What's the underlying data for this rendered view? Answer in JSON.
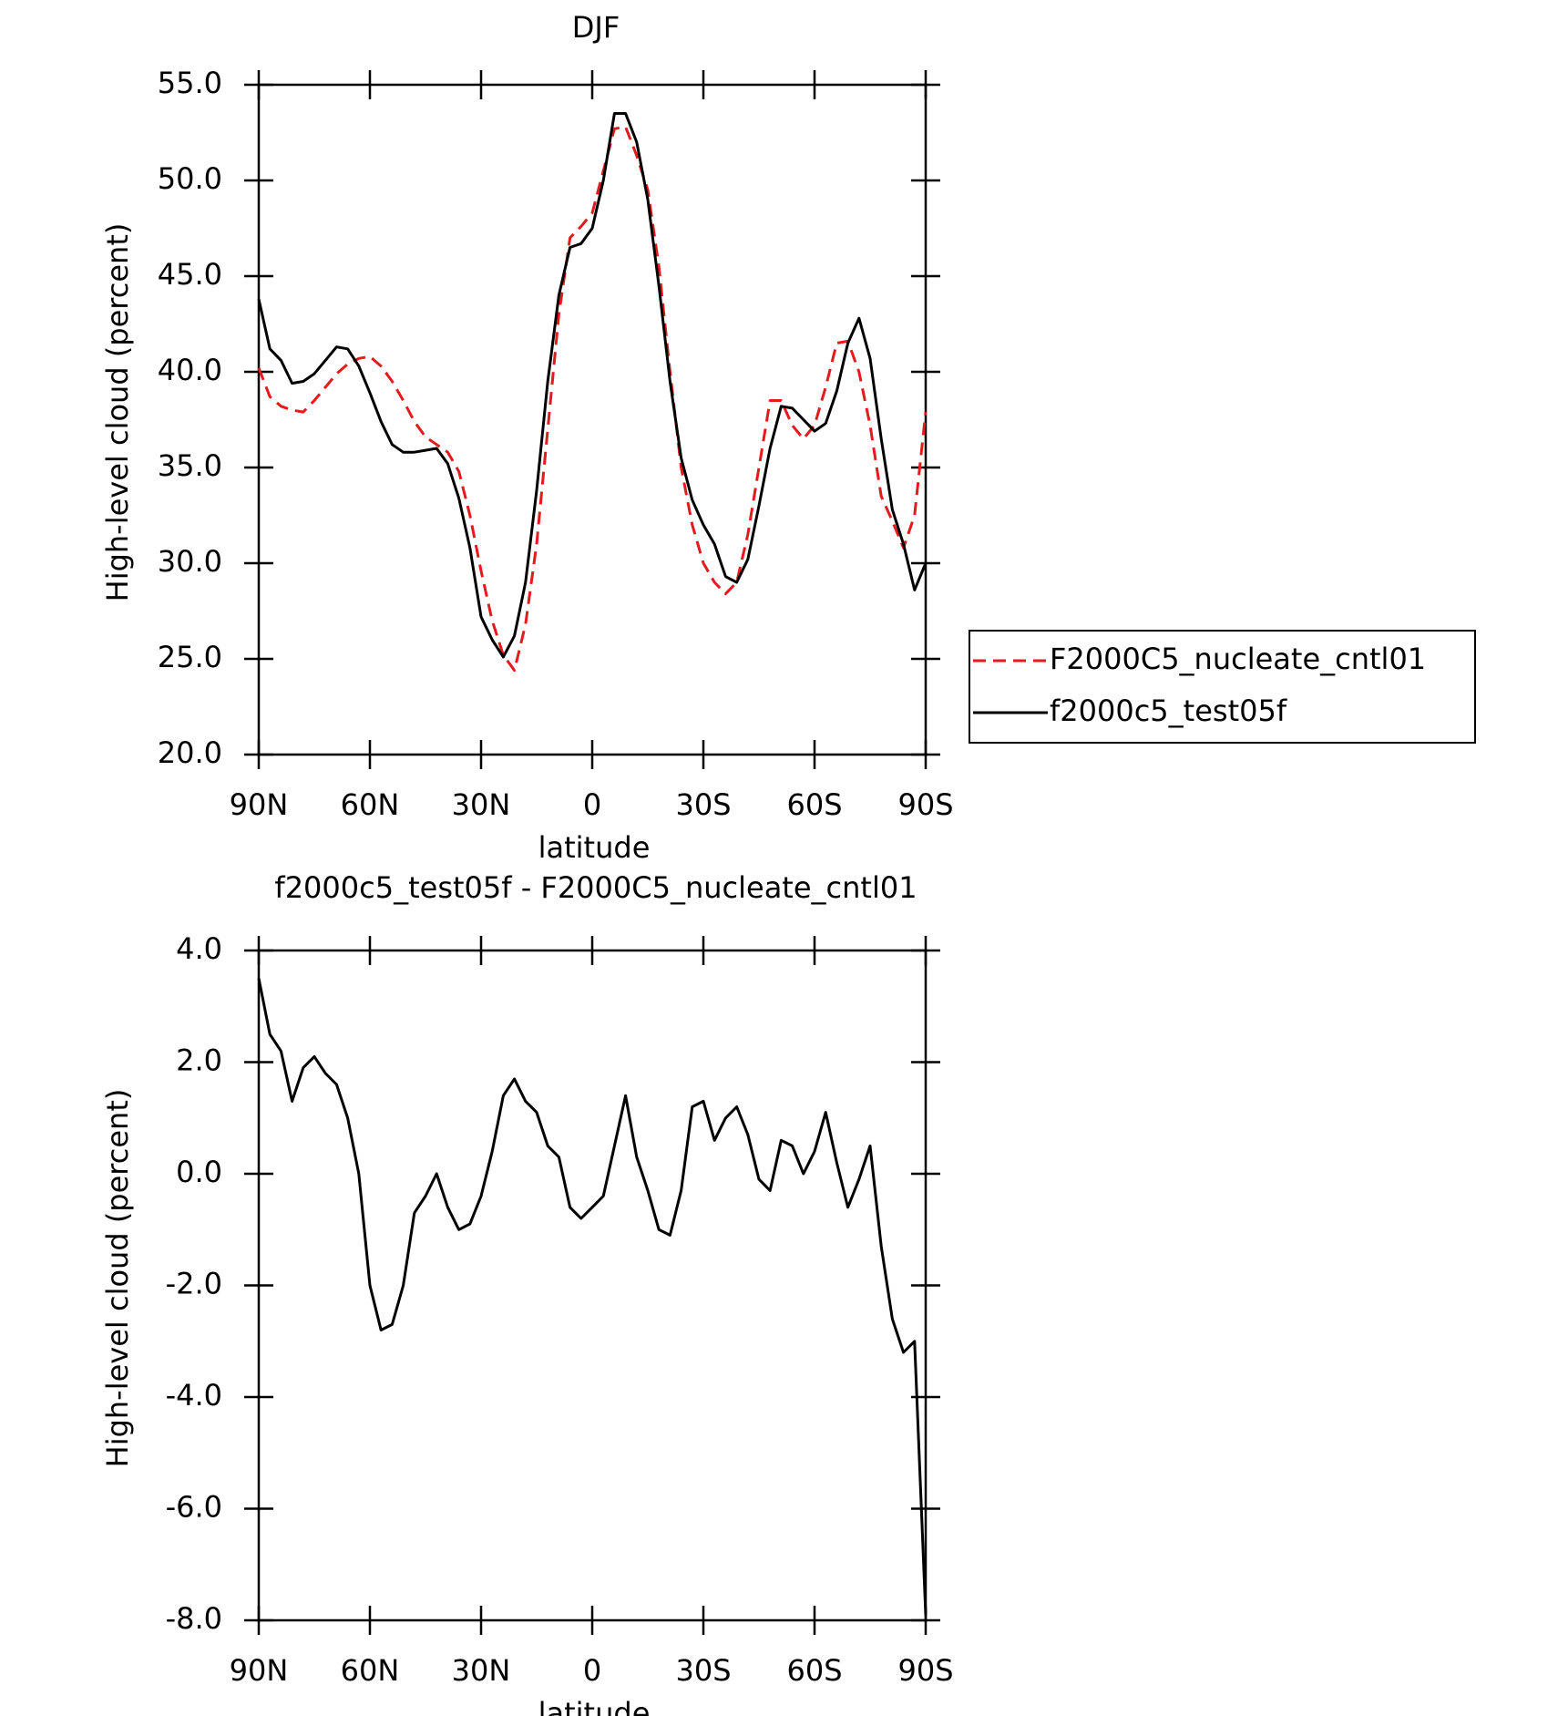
{
  "chart_data": [
    {
      "type": "line",
      "title": "DJF",
      "xlabel": "latitude",
      "ylabel": "High-level cloud (percent)",
      "x": [
        90,
        87,
        84,
        81,
        78,
        75,
        72,
        69,
        66,
        63,
        60,
        57,
        54,
        51,
        48,
        45,
        42,
        39,
        36,
        33,
        30,
        27,
        24,
        21,
        18,
        15,
        12,
        9,
        6,
        3,
        0,
        -3,
        -6,
        -9,
        -12,
        -15,
        -18,
        -21,
        -24,
        -27,
        -30,
        -33,
        -36,
        -39,
        -42,
        -45,
        -48,
        -51,
        -54,
        -57,
        -60,
        -63,
        -66,
        -69,
        -72,
        -75,
        -78,
        -81,
        -84,
        -87,
        -90
      ],
      "xlim": [
        90,
        -90
      ],
      "xticks": [
        {
          "value": 90,
          "label": "90N"
        },
        {
          "value": 60,
          "label": "60N"
        },
        {
          "value": 30,
          "label": "30N"
        },
        0,
        {
          "value": -30,
          "label": "30S"
        },
        {
          "value": -60,
          "label": "60S"
        },
        {
          "value": -90,
          "label": "90S"
        }
      ],
      "ylim": [
        20,
        55
      ],
      "yticks": [
        {
          "value": 20,
          "label": "20.0"
        },
        {
          "value": 25,
          "label": "25.0"
        },
        {
          "value": 30,
          "label": "30.0"
        },
        {
          "value": 35,
          "label": "35.0"
        },
        {
          "value": 40,
          "label": "40.0"
        },
        {
          "value": 45,
          "label": "45.0"
        },
        {
          "value": 50,
          "label": "50.0"
        },
        {
          "value": 55,
          "label": "55.0"
        }
      ],
      "legend": "right",
      "series": [
        {
          "name": "F2000C5_nucleate_cntl01",
          "color": "#e41a1c",
          "linestyle": "dashed",
          "values": [
            40.2,
            38.7,
            38.2,
            38.0,
            37.9,
            38.5,
            39.2,
            39.9,
            40.4,
            40.7,
            40.8,
            40.3,
            39.5,
            38.5,
            37.4,
            36.6,
            36.2,
            35.8,
            34.8,
            32.5,
            29.6,
            27.0,
            25.2,
            24.4,
            26.8,
            31.0,
            37.0,
            43.0,
            47.0,
            47.6,
            48.3,
            50.5,
            52.7,
            52.8,
            51.3,
            49.5,
            45.5,
            40.0,
            35.0,
            32.0,
            30.0,
            29.0,
            28.4,
            29.0,
            31.5,
            35.0,
            38.5,
            38.5,
            37.2,
            36.5,
            37.2,
            39.2,
            41.5,
            41.6,
            40.0,
            37.2,
            33.5,
            32.2,
            30.8,
            32.5,
            37.9
          ]
        },
        {
          "name": "f2000c5_test05f",
          "color": "#000000",
          "linestyle": "solid",
          "values": [
            43.8,
            41.2,
            40.6,
            39.4,
            39.5,
            39.9,
            40.6,
            41.3,
            41.2,
            40.3,
            38.9,
            37.4,
            36.2,
            35.8,
            35.8,
            35.9,
            36.0,
            35.2,
            33.4,
            30.8,
            27.2,
            26.0,
            25.1,
            26.2,
            29.0,
            33.8,
            39.5,
            44.0,
            46.5,
            46.7,
            47.5,
            50.0,
            53.5,
            53.5,
            52.0,
            49.0,
            44.5,
            39.5,
            35.5,
            33.3,
            32.0,
            31.0,
            29.3,
            29.0,
            30.2,
            33.0,
            36.0,
            38.2,
            38.1,
            37.5,
            36.9,
            37.3,
            39.0,
            41.5,
            42.8,
            40.7,
            36.5,
            32.8,
            31.0,
            28.6,
            30.0
          ]
        }
      ]
    },
    {
      "type": "line",
      "title": "f2000c5_test05f - F2000C5_nucleate_cntl01",
      "xlabel": "latitude",
      "ylabel": "High-level cloud (percent)",
      "x": [
        90,
        87,
        84,
        81,
        78,
        75,
        72,
        69,
        66,
        63,
        60,
        57,
        54,
        51,
        48,
        45,
        42,
        39,
        36,
        33,
        30,
        27,
        24,
        21,
        18,
        15,
        12,
        9,
        6,
        3,
        0,
        -3,
        -6,
        -9,
        -12,
        -15,
        -18,
        -21,
        -24,
        -27,
        -30,
        -33,
        -36,
        -39,
        -42,
        -45,
        -48,
        -51,
        -54,
        -57,
        -60,
        -63,
        -66,
        -69,
        -72,
        -75,
        -78,
        -81,
        -84,
        -87,
        -90
      ],
      "xlim": [
        90,
        -90
      ],
      "xticks": [
        {
          "value": 90,
          "label": "90N"
        },
        {
          "value": 60,
          "label": "60N"
        },
        {
          "value": 30,
          "label": "30N"
        },
        0,
        {
          "value": -30,
          "label": "30S"
        },
        {
          "value": -60,
          "label": "60S"
        },
        {
          "value": -90,
          "label": "90S"
        }
      ],
      "ylim": [
        -8,
        4
      ],
      "yticks": [
        {
          "value": -8,
          "label": "-8.0"
        },
        {
          "value": -6,
          "label": "-6.0"
        },
        {
          "value": -4,
          "label": "-4.0"
        },
        {
          "value": -2,
          "label": "-2.0"
        },
        {
          "value": 0,
          "label": "0.0"
        },
        {
          "value": 2,
          "label": "2.0"
        },
        {
          "value": 4,
          "label": "4.0"
        }
      ],
      "series": [
        {
          "color": "#000000",
          "linestyle": "solid",
          "values": [
            3.5,
            2.5,
            2.2,
            1.3,
            1.9,
            2.1,
            1.8,
            1.6,
            1.0,
            0.0,
            -2.0,
            -2.8,
            -2.7,
            -2.0,
            -0.7,
            -0.4,
            0.0,
            -0.6,
            -1.0,
            -0.9,
            -0.4,
            0.4,
            1.4,
            1.7,
            1.3,
            1.1,
            0.5,
            0.3,
            -0.6,
            -0.8,
            -0.6,
            -0.4,
            0.5,
            1.4,
            0.3,
            -0.3,
            -1.0,
            -1.1,
            -0.3,
            1.2,
            1.3,
            0.6,
            1.0,
            1.2,
            0.7,
            -0.1,
            -0.3,
            0.6,
            0.5,
            0.0,
            0.4,
            1.1,
            0.2,
            -0.6,
            -0.1,
            0.5,
            -1.3,
            -2.6,
            -3.2,
            -3.0,
            -7.9
          ]
        }
      ]
    }
  ]
}
